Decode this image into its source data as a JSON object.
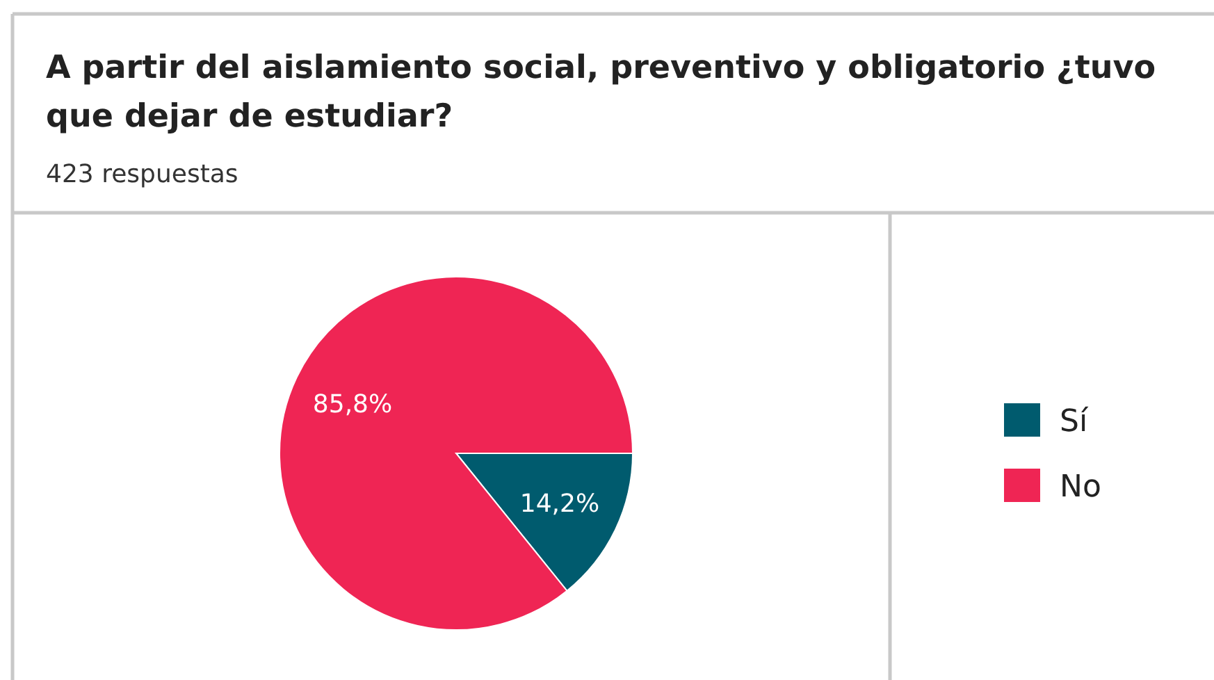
{
  "chart_data": {
    "type": "pie",
    "title": "A partir del aislamiento social, preventivo y obligatorio ¿tuvo que dejar de estudiar?",
    "subtitle": "423 respuestas",
    "categories": [
      "Sí",
      "No"
    ],
    "values": [
      14.2,
      85.8
    ],
    "colors": [
      "#005b6e",
      "#ef2554"
    ],
    "value_labels": [
      "14,2%",
      "85,8%"
    ],
    "legend": "right"
  }
}
